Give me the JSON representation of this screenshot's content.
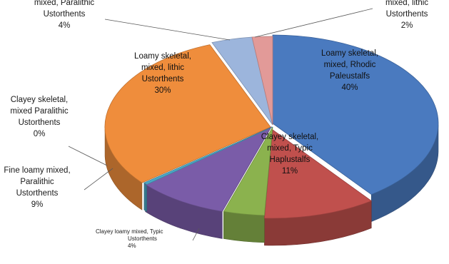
{
  "chart_data": {
    "type": "pie",
    "style": "3d-exploded",
    "slices": [
      {
        "label": [
          "Loamy skeletal,",
          "mixed, Rhodic",
          "Paleustalfs"
        ],
        "pct_text": "40%",
        "value": 40,
        "color": "#4a7abf"
      },
      {
        "label": [
          "Clayey skeletal,",
          "mixed, Typic",
          "Haplustalfs"
        ],
        "pct_text": "11%",
        "value": 11,
        "color": "#c0504d"
      },
      {
        "label": [
          "Clayey loamy mixed, Typic",
          "Ustorthents"
        ],
        "pct_text": "4%",
        "value": 4,
        "color": "#8bb24e"
      },
      {
        "label": [
          "Fine loamy mixed,",
          "Paralithic",
          "Ustorthents"
        ],
        "pct_text": "9%",
        "value": 9,
        "color": "#7a5ca8"
      },
      {
        "label": [
          "Clayey skeletal,",
          "mixed Paralithic",
          "Ustorthents"
        ],
        "pct_text": "0%",
        "value": 0.4,
        "color": "#4ba6c4"
      },
      {
        "label": [
          "Loamy skeletal,",
          "mixed, lithic",
          "Ustorthents"
        ],
        "pct_text": "30%",
        "value": 30,
        "color": "#ef8d3c"
      },
      {
        "label": [
          "Loamy skeletal,",
          "mixed, Paralithic",
          "Ustorthents"
        ],
        "pct_text": "4%",
        "value": 4,
        "color": "#9cb5dc"
      },
      {
        "label": [
          "Loamy skeletal",
          "mixed, lithic",
          "Ustorthents"
        ],
        "pct_text": "2%",
        "value": 2,
        "color": "#e29a98"
      }
    ]
  }
}
